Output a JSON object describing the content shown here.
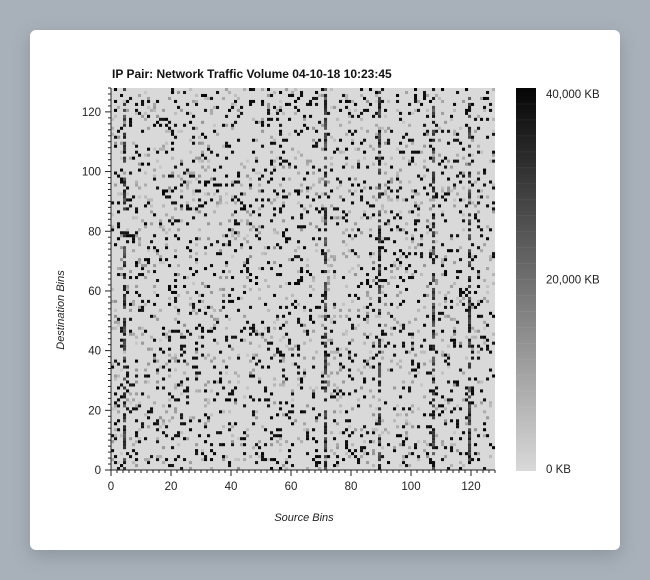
{
  "chart_data": {
    "type": "heatmap",
    "title": "IP Pair: Network Traffic Volume 04-10-18 10:23:45",
    "xlabel": "Source Bins",
    "ylabel": "Destination Bins",
    "xlim": [
      0,
      128
    ],
    "ylim": [
      0,
      128
    ],
    "grid_size": 128,
    "x_ticks": [
      "0",
      "20",
      "40",
      "60",
      "80",
      "100",
      "120"
    ],
    "y_ticks": [
      "0",
      "20",
      "40",
      "60",
      "80",
      "100",
      "120"
    ],
    "x_tick_values": [
      0,
      20,
      40,
      60,
      80,
      100,
      120
    ],
    "y_tick_values": [
      0,
      20,
      40,
      60,
      80,
      100,
      120
    ],
    "colorbar": {
      "min": 0,
      "max": 40000,
      "unit": "KB",
      "labels": [
        "40,000 KB",
        "20,000 KB",
        "0 KB"
      ],
      "label_values": [
        40000,
        20000,
        0
      ],
      "color_low": "#d9d9d9",
      "color_high": "#050505"
    },
    "background_value": 0,
    "dense_columns": [
      4,
      71,
      89,
      107,
      119
    ],
    "cell_density": 0.16,
    "pattern_seed": 20180410
  }
}
